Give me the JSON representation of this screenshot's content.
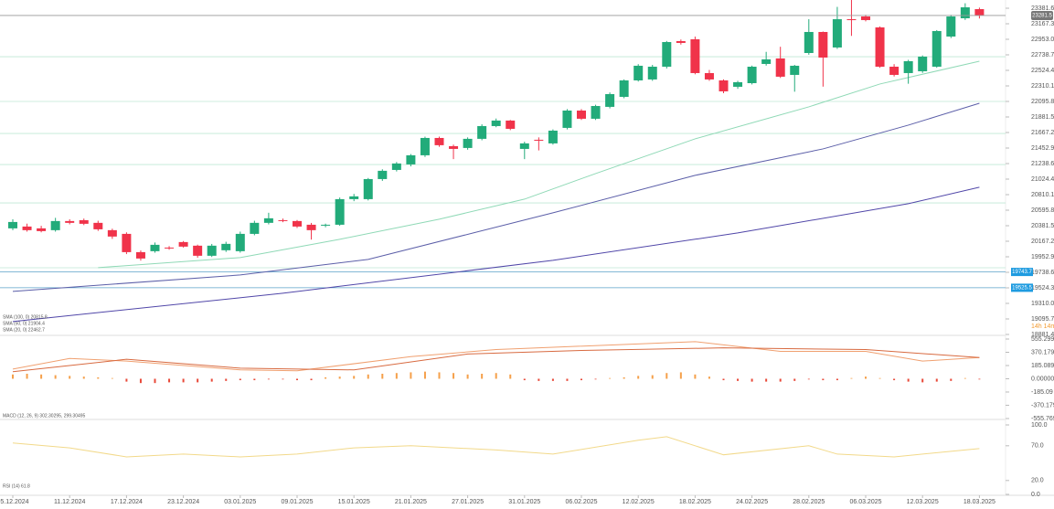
{
  "chart_data": {
    "type": "candlestick",
    "xticks": [
      {
        "value": 0,
        "label": "05.12.2024"
      },
      {
        "value": 4,
        "label": "11.12.2024"
      },
      {
        "value": 8,
        "label": "17.12.2024"
      },
      {
        "value": 12,
        "label": "23.12.2024"
      },
      {
        "value": 16,
        "label": "03.01.2025"
      },
      {
        "value": 20,
        "label": "09.01.2025"
      },
      {
        "value": 24,
        "label": "15.01.2025"
      },
      {
        "value": 28,
        "label": "21.01.2025"
      },
      {
        "value": 32,
        "label": "27.01.2025"
      },
      {
        "value": 36,
        "label": "31.01.2025"
      },
      {
        "value": 40,
        "label": "06.02.2025"
      },
      {
        "value": 44,
        "label": "12.02.2025"
      },
      {
        "value": 48,
        "label": "18.02.2025"
      },
      {
        "value": 52,
        "label": "24.02.2025"
      },
      {
        "value": 56,
        "label": "28.02.2025"
      },
      {
        "value": 60,
        "label": "06.03.2025"
      },
      {
        "value": 64,
        "label": "12.03.2025"
      },
      {
        "value": 68,
        "label": "18.03.2025"
      }
    ],
    "open": [
      20345,
      20370,
      20345,
      20320,
      20446,
      20458,
      20421,
      20320,
      20269,
      20017,
      20030,
      20080,
      20156,
      20106,
      19967,
      20043,
      20030,
      20269,
      20421,
      20458,
      20446,
      20395,
      20383,
      20395,
      20748,
      20748,
      21025,
      21151,
      21227,
      21353,
      21592,
      21479,
      21454,
      21580,
      21756,
      21832,
      21441,
      21567,
      21517,
      21731,
      21970,
      21857,
      22021,
      22159,
      22386,
      22399,
      22575,
      22928,
      22953,
      22487,
      22386,
      22298,
      22348,
      22613,
      22689,
      22462,
      22764,
      23054,
      22840,
      23230,
      23268,
      23117,
      22575,
      22487,
      22512,
      22575,
      22991,
      23243,
      23369
    ],
    "high": [
      20470,
      20410,
      20380,
      20490,
      20470,
      20480,
      20450,
      20340,
      20290,
      20040,
      20150,
      20100,
      20170,
      20120,
      20130,
      20160,
      20300,
      20450,
      20560,
      20480,
      20460,
      20420,
      20410,
      20770,
      20820,
      21040,
      21160,
      21260,
      21370,
      21610,
      21610,
      21500,
      21600,
      21780,
      21860,
      21840,
      21540,
      21600,
      21710,
      21990,
      21990,
      22050,
      22220,
      22400,
      22610,
      22600,
      22930,
      22950,
      22990,
      22530,
      22400,
      22380,
      22590,
      22780,
      22850,
      22600,
      23230,
      23060,
      23400,
      23500,
      23290,
      23130,
      22610,
      22670,
      22730,
      23080,
      23290,
      23450,
      23390
    ],
    "low": [
      20320,
      20300,
      20290,
      20300,
      20400,
      20390,
      20310,
      20200,
      19990,
      19900,
      20010,
      20050,
      20080,
      19940,
      19950,
      20020,
      20010,
      20250,
      20400,
      20430,
      20350,
      20190,
      20360,
      20380,
      20720,
      20730,
      21000,
      21130,
      21200,
      21330,
      21470,
      21300,
      21430,
      21560,
      21740,
      21700,
      21300,
      21420,
      21500,
      21710,
      21840,
      21840,
      22000,
      22140,
      22370,
      22380,
      22550,
      22880,
      22470,
      22380,
      22210,
      22270,
      22330,
      22590,
      22420,
      22230,
      22740,
      22300,
      22820,
      23000,
      23200,
      22560,
      22440,
      22340,
      22490,
      22560,
      22970,
      23220,
      23240
    ],
    "close": [
      20433,
      20320,
      20307,
      20446,
      20421,
      20408,
      20332,
      20232,
      20017,
      19929,
      20118,
      20068,
      20093,
      19967,
      20106,
      20131,
      20269,
      20421,
      20484,
      20446,
      20370,
      20320,
      20395,
      20748,
      20786,
      21025,
      21139,
      21240,
      21353,
      21592,
      21492,
      21441,
      21580,
      21756,
      21832,
      21718,
      21517,
      21555,
      21693,
      21970,
      21857,
      22033,
      22197,
      22386,
      22588,
      22575,
      22915,
      22903,
      22487,
      22399,
      22235,
      22361,
      22575,
      22676,
      22437,
      22588,
      23054,
      22701,
      23230,
      23218,
      23218,
      22575,
      22462,
      22651,
      22714,
      23067,
      23268,
      23394,
      23281.5
    ],
    "up_color": "#22ab7a",
    "down_color": "#f0334a",
    "ylim": [
      18881.4,
      23381.6
    ],
    "yticks": [
      23381.6,
      23167.3,
      {
        "value": 22953,
        "label": "22953.0"
      },
      22738.7,
      22524.4,
      22310.1,
      22095.8,
      21881.5,
      21667.2,
      21452.9,
      21238.6,
      21024.4,
      20810.1,
      20595.8,
      20381.5,
      20167.2,
      19952.9,
      19738.6,
      19524.3,
      {
        "value": 19310,
        "label": "19310.0"
      },
      19095.7,
      18881.4
    ],
    "levels": [
      22713,
      22096,
      21654,
      21225,
      20696,
      19802
    ],
    "price_lines": [
      19743.7,
      19525.5
    ],
    "timer": "14h 14m",
    "series": [
      {
        "name": "SMA (20, 0) 22462.7",
        "color": "#8fd9b6",
        "x": [
          6,
          16,
          23,
          30,
          36,
          41,
          48,
          56,
          61,
          68
        ],
        "values": [
          19803,
          19942,
          20194,
          20471,
          20748,
          21101,
          21580,
          22021,
          22336,
          22651
        ]
      },
      {
        "name": "SMA (50, 0) 21904.4",
        "color": "#5b5ea8",
        "x": [
          0,
          16,
          25,
          38,
          48,
          57,
          63,
          68
        ],
        "values": [
          19476,
          19702,
          19917,
          20559,
          21076,
          21441,
          21769,
          22071
        ]
      },
      {
        "name": "SMA (100, 0) 20815.8",
        "color": "#5046a8",
        "x": [
          0,
          19,
          38,
          51,
          63,
          68
        ],
        "values": [
          19060,
          19450,
          19904,
          20282,
          20685,
          20912
        ]
      }
    ],
    "macd": {
      "name": "MACD (12, 26, 9) 302.30295, 299.30495",
      "ylim": [
        -555.769,
        555.299
      ],
      "yticks": [
        555.299,
        370.179,
        185.089,
        {
          "value": 0,
          "label": "0.00000"
        },
        -185.09,
        -370.179,
        -555.769
      ],
      "histogram": [
        60,
        70,
        60,
        50,
        40,
        30,
        20,
        10,
        -40,
        -60,
        -60,
        -50,
        -50,
        -50,
        -40,
        -30,
        -20,
        -20,
        -10,
        -10,
        -20,
        -20,
        20,
        30,
        40,
        60,
        70,
        80,
        90,
        100,
        90,
        80,
        60,
        70,
        80,
        60,
        -20,
        -30,
        -30,
        -30,
        -20,
        -10,
        10,
        20,
        40,
        50,
        80,
        90,
        60,
        30,
        -20,
        -30,
        -40,
        -40,
        -40,
        -30,
        -10,
        -20,
        -20,
        10,
        30,
        10,
        -20,
        -40,
        -50,
        -40,
        -30,
        10,
        -10
      ],
      "pos_color": "#f5a04a",
      "neg_color": "#e84a3a",
      "lines": [
        {
          "color": "#f0a070",
          "x": [
            0,
            4,
            8,
            16,
            20,
            28,
            34,
            48,
            54,
            60,
            64,
            68
          ],
          "values": [
            136,
            284,
            247,
            124,
            111,
            309,
            408,
            519,
            383,
            383,
            247,
            296
          ]
        },
        {
          "color": "#d86a40",
          "x": [
            0,
            8,
            16,
            24,
            32,
            40,
            50,
            60,
            68
          ],
          "values": [
            99,
            272,
            148,
            124,
            346,
            395,
            432,
            408,
            296
          ]
        }
      ]
    },
    "rsi": {
      "name": "RSI (14) 61.8",
      "ylim": [
        0,
        100
      ],
      "yticks": [
        {
          "value": 100,
          "label": "100.0"
        },
        {
          "value": 70,
          "label": "70.0"
        },
        {
          "value": 20,
          "label": "20.0"
        },
        {
          "value": 0,
          "label": "0.0"
        }
      ],
      "color": "#f2d98a",
      "x": [
        0,
        4,
        8,
        12,
        16,
        20,
        24,
        28,
        34,
        38,
        44,
        46,
        50,
        56,
        58,
        62,
        66,
        68
      ],
      "values": [
        74,
        67,
        54,
        58,
        54,
        58,
        67,
        70,
        64,
        58,
        78,
        83,
        57,
        70,
        58,
        54,
        62,
        66
      ]
    }
  }
}
